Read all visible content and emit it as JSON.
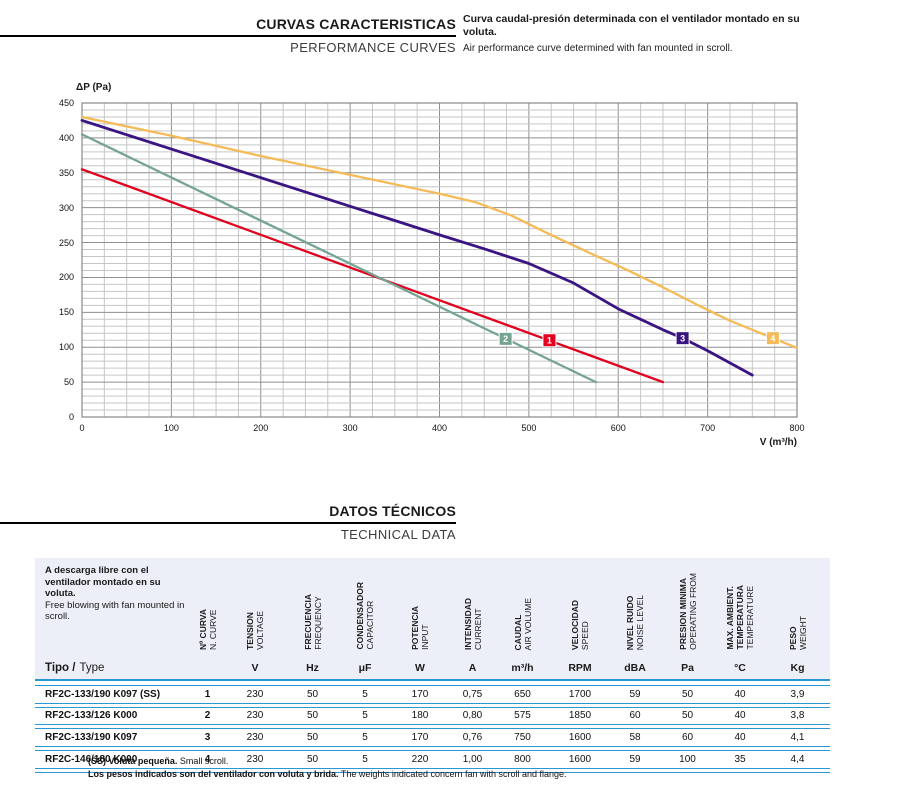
{
  "page": {
    "section1": {
      "title_es": "CURVAS CARACTERISTICAS",
      "title_en": "PERFORMANCE CURVES",
      "note_es": "Curva caudal-presión determinada con el ventilador montado en su voluta.",
      "note_en": "Air performance curve determined with fan mounted in scroll."
    },
    "section2": {
      "title_es": "DATOS TÉCNICOS",
      "title_en": "TECHNICAL DATA"
    },
    "footer": {
      "note1_bold": "(SS) Voluta pequeña.",
      "note1_regular": " Small scroll.",
      "note2_bold": "Los pesos indicados son del ventilador con voluta y brida.",
      "note2_regular": " The weights indicated concern fan with scroll and flange."
    }
  },
  "colors": {
    "accent_blue": "#2798d4",
    "header_band": "#edeff8"
  },
  "chart_data": {
    "type": "line",
    "title": "",
    "xlabel": "V (m³/h)",
    "ylabel": "ΔP (Pa)",
    "xlim": [
      0,
      800
    ],
    "ylim": [
      0,
      450
    ],
    "x_major": 100,
    "x_minor": 25,
    "y_major": 50,
    "y_minor": 10,
    "x_ticks": [
      0,
      100,
      200,
      300,
      400,
      500,
      600,
      700,
      800
    ],
    "y_ticks": [
      0,
      50,
      100,
      150,
      200,
      250,
      300,
      350,
      400,
      450
    ],
    "grid_minor": "#c6c6c6",
    "grid_major": "#8f8f8f",
    "border": "#888888",
    "legend_position": "markers-on-curves",
    "series": [
      {
        "name": "1",
        "color": "#e2001e",
        "width": 2.3,
        "marker_at": [
          523,
          110
        ],
        "points": [
          [
            0,
            355
          ],
          [
            650,
            50
          ]
        ]
      },
      {
        "name": "2",
        "color": "#75a492",
        "width": 2.3,
        "marker_at": [
          474,
          112
        ],
        "points": [
          [
            0,
            405
          ],
          [
            575,
            50
          ]
        ]
      },
      {
        "name": "3",
        "color": "#3a1482",
        "width": 2.8,
        "marker_at": [
          672,
          113
        ],
        "points": [
          [
            0,
            425
          ],
          [
            100,
            384
          ],
          [
            200,
            343
          ],
          [
            300,
            302
          ],
          [
            400,
            261
          ],
          [
            450,
            241
          ],
          [
            500,
            220
          ],
          [
            550,
            192
          ],
          [
            600,
            155
          ],
          [
            650,
            125
          ],
          [
            672,
            113
          ],
          [
            700,
            95
          ],
          [
            750,
            60
          ]
        ]
      },
      {
        "name": "4",
        "color": "#f4bb58",
        "width": 2.3,
        "marker_at": [
          773,
          113
        ],
        "points": [
          [
            0,
            430
          ],
          [
            100,
            403
          ],
          [
            200,
            374
          ],
          [
            300,
            347
          ],
          [
            400,
            320
          ],
          [
            440,
            308
          ],
          [
            480,
            289
          ],
          [
            523,
            262
          ],
          [
            575,
            231
          ],
          [
            611,
            210
          ],
          [
            650,
            186
          ],
          [
            688,
            161
          ],
          [
            725,
            138
          ],
          [
            773,
            113
          ],
          [
            800,
            99
          ]
        ]
      }
    ]
  },
  "table": {
    "description_es": "A descarga libre con el ventilador montado en su voluta.",
    "description_en": "Free blowing with fan mounted in scroll.",
    "row_label_bold": "Tipo /",
    "row_label_regular": "Type",
    "columns": [
      {
        "es": "Nº CURVA",
        "en": "N. CURVE",
        "unit": ""
      },
      {
        "es": "TENSION",
        "en": "VOLTAGE",
        "unit": "V"
      },
      {
        "es": "FRECUENCIA",
        "en": "FREQUENCY",
        "unit": "Hz"
      },
      {
        "es": "CONDENSADOR",
        "en": "CAPACITOR",
        "unit": "μF"
      },
      {
        "es": "POTENCIA",
        "en": "INPUT",
        "unit": "W"
      },
      {
        "es": "INTENSIDAD",
        "en": "CURRENT",
        "unit": "A"
      },
      {
        "es": "CAUDAL",
        "en": "AIR VOLUME",
        "unit": "m³/h"
      },
      {
        "es": "VELOCIDAD",
        "en": "SPEED",
        "unit": "RPM"
      },
      {
        "es": "NIVEL RUIDO",
        "en": "NOISE LEVEL",
        "unit": "dBA"
      },
      {
        "es": "PRESION MINIMA",
        "en": "OPERATING FROM",
        "unit": "Pa"
      },
      {
        "es": "MAX. AMBIENT.\nTEMPERATURA",
        "en": "TEMPERATURE",
        "unit": "°C"
      },
      {
        "es": "PESO",
        "en": "WEIGHT",
        "unit": "Kg"
      }
    ],
    "rows": [
      {
        "type": "RF2C-133/190 K097 (SS)",
        "curve": "1",
        "values": [
          "230",
          "50",
          "5",
          "170",
          "0,75",
          "650",
          "1700",
          "59",
          "50",
          "40",
          "3,9"
        ]
      },
      {
        "type": "RF2C-133/126 K000",
        "curve": "2",
        "values": [
          "230",
          "50",
          "5",
          "180",
          "0,80",
          "575",
          "1850",
          "60",
          "50",
          "40",
          "3,8"
        ]
      },
      {
        "type": "RF2C-133/190 K097",
        "curve": "3",
        "values": [
          "230",
          "50",
          "5",
          "170",
          "0,76",
          "750",
          "1600",
          "58",
          "60",
          "40",
          "4,1"
        ]
      },
      {
        "type": "RF2C-146/180 K000",
        "curve": "4",
        "values": [
          "230",
          "50",
          "5",
          "220",
          "1,00",
          "800",
          "1600",
          "59",
          "100",
          "35",
          "4,4"
        ]
      }
    ]
  }
}
